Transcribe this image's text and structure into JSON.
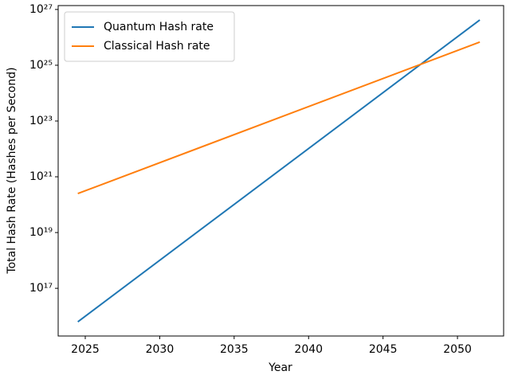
{
  "chart_data": {
    "type": "line",
    "x_label": "Year",
    "y_label": "Total Hash Rate (Hashes per Second)",
    "x": [
      2024.5,
      2051.5
    ],
    "series": [
      {
        "name": "Quantum Hash rate",
        "color": "#1f77b4",
        "values": [
          6300000000000000.0,
          4.2e+26
        ]
      },
      {
        "name": "Classical Hash rate",
        "color": "#ff7f0e",
        "values": [
          2.5e+20,
          6.8e+25
        ]
      }
    ],
    "xlim": [
      2023.18,
      2053.1
    ],
    "xticks": [
      2025,
      2030,
      2035,
      2040,
      2045,
      2050
    ],
    "ylim": [
      1950000000000000.0,
      1.38e+27
    ],
    "y_log": true,
    "yticks": [
      {
        "value": 1e+17,
        "label": "10¹⁷"
      },
      {
        "value": 1e+19,
        "label": "10¹⁹"
      },
      {
        "value": 1e+21,
        "label": "10²¹"
      },
      {
        "value": 1e+23,
        "label": "10²³"
      },
      {
        "value": 1e+25,
        "label": "10²⁵"
      },
      {
        "value": 1e+27,
        "label": "10²⁷"
      }
    ],
    "legend": "upper left",
    "grid": false
  }
}
